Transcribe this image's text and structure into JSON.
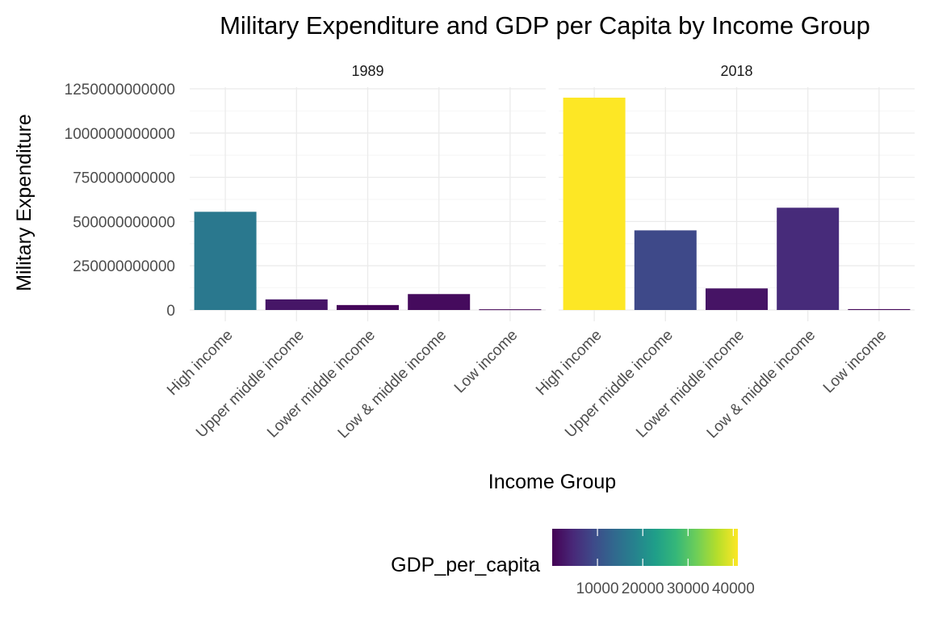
{
  "chart_data": {
    "type": "bar",
    "title": "Military Expenditure and GDP per Capita by Income Group",
    "xlabel": "Income Group",
    "ylabel": "Military Expenditure",
    "categories": [
      "High income",
      "Upper middle income",
      "Lower middle income",
      "Low & middle income",
      "Low income"
    ],
    "ylim": [
      0,
      1250000000000
    ],
    "y_ticks": [
      0,
      250000000000,
      500000000000,
      750000000000,
      1000000000000,
      1250000000000
    ],
    "y_tick_labels": [
      "0",
      "250000000000",
      "500000000000",
      "750000000000",
      "1000000000000",
      "1250000000000"
    ],
    "grid": true,
    "panels": [
      {
        "label": "1989",
        "values": [
          555000000000,
          60000000000,
          28000000000,
          90000000000,
          4000000000
        ],
        "gdp_per_capita": [
          16500,
          2400,
          700,
          1200,
          300
        ]
      },
      {
        "label": "2018",
        "values": [
          1200000000000,
          450000000000,
          122000000000,
          578000000000,
          5000000000
        ],
        "gdp_per_capita": [
          41000,
          9000,
          2200,
          5000,
          800
        ]
      }
    ],
    "legend": {
      "title": "GDP_per_capita",
      "position": "bottom",
      "range": [
        0,
        41000
      ],
      "ticks": [
        10000,
        20000,
        30000,
        40000
      ],
      "tick_labels": [
        "10000",
        "20000",
        "30000",
        "40000"
      ],
      "palette": [
        "#440154",
        "#482878",
        "#3e4a89",
        "#31688e",
        "#26828e",
        "#1f9e89",
        "#35b779",
        "#6ece58",
        "#b5de2b",
        "#fde725"
      ]
    }
  }
}
